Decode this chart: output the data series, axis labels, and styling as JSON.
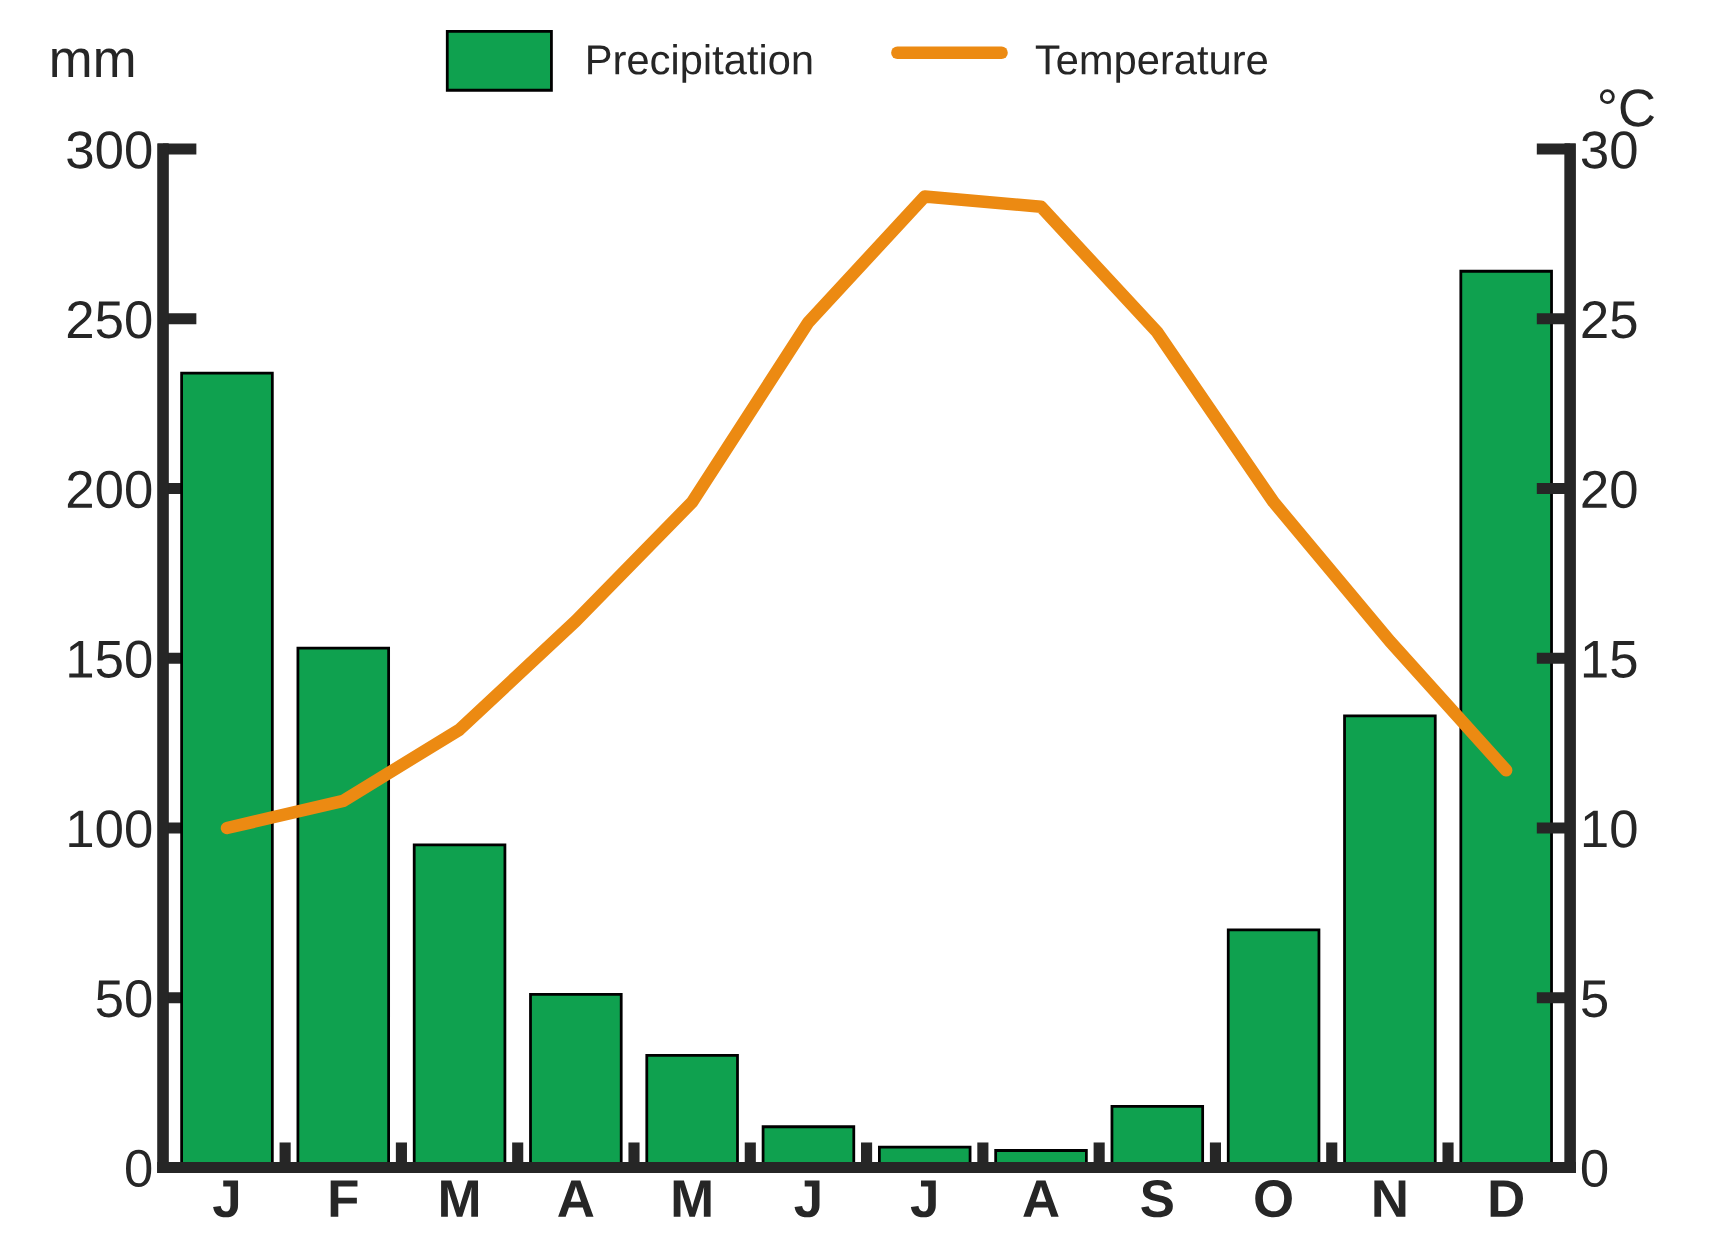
{
  "chart_data": {
    "type": "bar",
    "categories": [
      "J",
      "F",
      "M",
      "A",
      "M",
      "J",
      "J",
      "A",
      "S",
      "O",
      "N",
      "D"
    ],
    "ylabel": "mm",
    "y2label": "°C",
    "series": [
      {
        "name": "Precipitation",
        "color": "#0fa14f",
        "values": [
          234,
          153,
          95,
          51,
          33,
          12,
          6,
          5,
          18,
          70,
          133,
          264
        ]
      },
      {
        "name": "Temperature",
        "type": "line",
        "axis": "y2",
        "color": "#ec8a12",
        "values": [
          10,
          10.8,
          12.9,
          16.1,
          19.6,
          24.9,
          28.6,
          28.3,
          24.6,
          19.6,
          15.5,
          11.7
        ]
      }
    ],
    "ylim": [
      0,
      300
    ],
    "yticks": [
      0,
      50,
      100,
      150,
      200,
      250,
      300
    ],
    "y2lim": [
      0,
      30
    ],
    "y2ticks": [
      0,
      5,
      10,
      15,
      20,
      25,
      30
    ],
    "grid": false,
    "legend": "top",
    "marker": "none",
    "line_style": "solid"
  }
}
